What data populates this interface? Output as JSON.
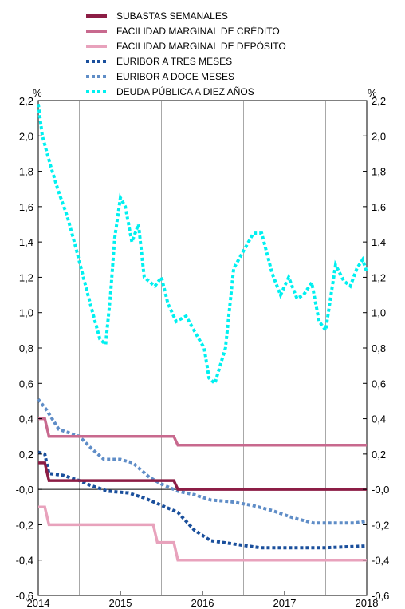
{
  "chart_data": {
    "type": "line",
    "y_unit_left": "%",
    "y_unit_right": "%",
    "ylim": [
      -0.6,
      2.2
    ],
    "yticks": [
      "2,2",
      "2,0",
      "1,8",
      "1,6",
      "1,4",
      "1,2",
      "1,0",
      "0,8",
      "0,6",
      "0,4",
      "0,2",
      "-0,0",
      "-0,2",
      "-0,4",
      "-0,6"
    ],
    "xlim": [
      2014.0,
      2018.0
    ],
    "xticks": [
      {
        "label": "2014",
        "x": 2014.0
      },
      {
        "label": "2015",
        "x": 2015.0
      },
      {
        "label": "2016",
        "x": 2016.0
      },
      {
        "label": "2017",
        "x": 2017.0
      },
      {
        "label": "2018",
        "x": 2018.0
      }
    ],
    "gridlines_x": [
      2014.5,
      2015.5,
      2016.5,
      2017.5
    ],
    "legend_position": "top",
    "series": [
      {
        "name": "SUBASTAS SEMANALES",
        "color": "#8c1d45",
        "style": "solid",
        "points": [
          [
            2014.0,
            0.15
          ],
          [
            2014.08,
            0.15
          ],
          [
            2014.13,
            0.05
          ],
          [
            2015.65,
            0.05
          ],
          [
            2015.7,
            0.0
          ],
          [
            2018.0,
            0.0
          ]
        ]
      },
      {
        "name": "FACILIDAD MARGINAL DE CRÉDITO",
        "color": "#c8698e",
        "style": "solid",
        "points": [
          [
            2014.0,
            0.4
          ],
          [
            2014.08,
            0.4
          ],
          [
            2014.13,
            0.3
          ],
          [
            2015.65,
            0.3
          ],
          [
            2015.7,
            0.25
          ],
          [
            2018.0,
            0.25
          ]
        ]
      },
      {
        "name": "FACILIDAD MARGINAL DE DEPÓSITO",
        "color": "#e8a2bc",
        "style": "solid",
        "points": [
          [
            2014.0,
            -0.1
          ],
          [
            2014.08,
            -0.1
          ],
          [
            2014.13,
            -0.2
          ],
          [
            2015.4,
            -0.2
          ],
          [
            2015.45,
            -0.3
          ],
          [
            2015.65,
            -0.3
          ],
          [
            2015.7,
            -0.4
          ],
          [
            2018.0,
            -0.4
          ]
        ]
      },
      {
        "name": "EURIBOR A TRES MESES",
        "color": "#1a4f9c",
        "style": "dotted",
        "points": [
          [
            2014.0,
            0.21
          ],
          [
            2014.08,
            0.2
          ],
          [
            2014.13,
            0.09
          ],
          [
            2014.3,
            0.08
          ],
          [
            2014.5,
            0.05
          ],
          [
            2014.65,
            0.02
          ],
          [
            2014.85,
            -0.01
          ],
          [
            2015.1,
            -0.02
          ],
          [
            2015.3,
            -0.05
          ],
          [
            2015.5,
            -0.09
          ],
          [
            2015.7,
            -0.13
          ],
          [
            2015.9,
            -0.23
          ],
          [
            2016.1,
            -0.29
          ],
          [
            2016.4,
            -0.31
          ],
          [
            2016.7,
            -0.33
          ],
          [
            2017.0,
            -0.33
          ],
          [
            2017.5,
            -0.33
          ],
          [
            2018.0,
            -0.32
          ]
        ]
      },
      {
        "name": "EURIBOR A DOCE MESES",
        "color": "#5f8dc7",
        "style": "dotted",
        "points": [
          [
            2014.0,
            0.51
          ],
          [
            2014.1,
            0.45
          ],
          [
            2014.25,
            0.34
          ],
          [
            2014.5,
            0.3
          ],
          [
            2014.65,
            0.23
          ],
          [
            2014.8,
            0.17
          ],
          [
            2015.0,
            0.17
          ],
          [
            2015.15,
            0.15
          ],
          [
            2015.35,
            0.07
          ],
          [
            2015.5,
            0.03
          ],
          [
            2015.7,
            -0.01
          ],
          [
            2015.9,
            -0.03
          ],
          [
            2016.1,
            -0.06
          ],
          [
            2016.35,
            -0.07
          ],
          [
            2016.6,
            -0.09
          ],
          [
            2016.85,
            -0.12
          ],
          [
            2017.1,
            -0.16
          ],
          [
            2017.35,
            -0.19
          ],
          [
            2017.6,
            -0.19
          ],
          [
            2017.85,
            -0.19
          ],
          [
            2018.0,
            -0.18
          ]
        ]
      },
      {
        "name": "DEUDA PÚBLICA A DIEZ AÑOS",
        "color": "#00f0f0",
        "style": "dotted",
        "points": [
          [
            2014.0,
            2.18
          ],
          [
            2014.05,
            2.0
          ],
          [
            2014.15,
            1.83
          ],
          [
            2014.25,
            1.68
          ],
          [
            2014.35,
            1.55
          ],
          [
            2014.45,
            1.38
          ],
          [
            2014.55,
            1.2
          ],
          [
            2014.65,
            1.02
          ],
          [
            2014.75,
            0.85
          ],
          [
            2014.82,
            0.82
          ],
          [
            2014.88,
            1.1
          ],
          [
            2014.93,
            1.42
          ],
          [
            2015.0,
            1.65
          ],
          [
            2015.06,
            1.6
          ],
          [
            2015.14,
            1.4
          ],
          [
            2015.22,
            1.5
          ],
          [
            2015.29,
            1.2
          ],
          [
            2015.42,
            1.15
          ],
          [
            2015.5,
            1.2
          ],
          [
            2015.58,
            1.05
          ],
          [
            2015.68,
            0.95
          ],
          [
            2015.8,
            0.98
          ],
          [
            2015.92,
            0.88
          ],
          [
            2016.02,
            0.8
          ],
          [
            2016.08,
            0.63
          ],
          [
            2016.15,
            0.6
          ],
          [
            2016.28,
            0.8
          ],
          [
            2016.38,
            1.25
          ],
          [
            2016.5,
            1.35
          ],
          [
            2016.62,
            1.45
          ],
          [
            2016.72,
            1.45
          ],
          [
            2016.85,
            1.22
          ],
          [
            2016.95,
            1.1
          ],
          [
            2017.05,
            1.2
          ],
          [
            2017.15,
            1.08
          ],
          [
            2017.23,
            1.1
          ],
          [
            2017.33,
            1.17
          ],
          [
            2017.42,
            0.95
          ],
          [
            2017.5,
            0.9
          ],
          [
            2017.62,
            1.27
          ],
          [
            2017.72,
            1.18
          ],
          [
            2017.8,
            1.15
          ],
          [
            2017.88,
            1.25
          ],
          [
            2017.95,
            1.3
          ],
          [
            2018.0,
            1.23
          ]
        ]
      }
    ]
  }
}
